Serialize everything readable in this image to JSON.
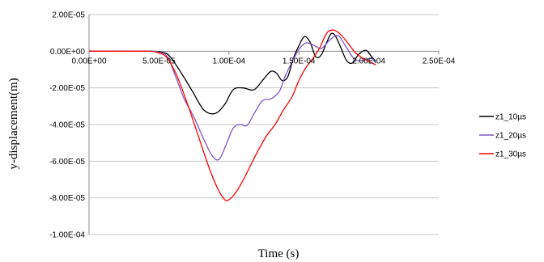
{
  "chart_data": {
    "type": "line",
    "title": "",
    "xlabel": "Time (s)",
    "ylabel": "y-displacement(m)",
    "xlim": [
      0,
      0.00025
    ],
    "ylim": [
      -0.0001,
      2e-05
    ],
    "xticks": [
      {
        "value": 0,
        "label": "0.00E+00"
      },
      {
        "value": 5e-05,
        "label": "5.00E-05"
      },
      {
        "value": 0.0001,
        "label": "1.00E-04"
      },
      {
        "value": 0.00015,
        "label": "1.50E-04"
      },
      {
        "value": 0.0002,
        "label": "2.00E-04"
      },
      {
        "value": 0.00025,
        "label": "2.50E-04"
      }
    ],
    "yticks": [
      {
        "value": 2e-05,
        "label": "2.00E-05"
      },
      {
        "value": 0,
        "label": "0.00E+00"
      },
      {
        "value": -2e-05,
        "label": "-2.00E-05"
      },
      {
        "value": -4e-05,
        "label": "-4.00E-05"
      },
      {
        "value": -6e-05,
        "label": "-6.00E-05"
      },
      {
        "value": -8e-05,
        "label": "-8.00E-05"
      },
      {
        "value": -0.0001,
        "label": "-1.00E-04"
      }
    ],
    "grid": "horizontal",
    "legend_position": "right",
    "series": [
      {
        "name": "z1_10µs",
        "color": "#000000",
        "x": [
          0,
          4e-05,
          5.2e-05,
          5.8e-05,
          6.6e-05,
          7.4e-05,
          8.2e-05,
          9e-05,
          9.7e-05,
          0.000103,
          0.00011,
          0.000118,
          0.000125,
          0.00013,
          0.000134,
          0.000138,
          0.000142,
          0.000146,
          0.00015,
          0.000154,
          0.000158,
          0.000162,
          0.000166,
          0.00017,
          0.000173,
          0.000176,
          0.00018,
          0.000184,
          0.000188,
          0.000193,
          0.000198,
          0.000202,
          0.000205
        ],
        "y": [
          0,
          0,
          -5e-07,
          -3e-06,
          -1.2e-05,
          -2.2e-05,
          -3.2e-05,
          -3.4e-05,
          -2.9e-05,
          -2.1e-05,
          -2e-05,
          -2.1e-05,
          -1.5e-05,
          -1.1e-05,
          -1.2e-05,
          -1.6e-05,
          -1.4e-05,
          -4e-06,
          3e-06,
          8e-06,
          5e-06,
          -3e-06,
          -2e-06,
          5e-06,
          9.5e-06,
          8.5e-06,
          2e-06,
          -5e-06,
          -6.5e-06,
          -1.5e-06,
          5e-07,
          -3e-06,
          -5.5e-06
        ]
      },
      {
        "name": "z1_20µs",
        "color": "#7b57c6",
        "x": [
          0,
          4e-05,
          5e-05,
          5.6e-05,
          6.2e-05,
          6.8e-05,
          7.5e-05,
          8.2e-05,
          8.8e-05,
          9.3e-05,
          9.8e-05,
          0.000103,
          0.000108,
          0.000113,
          0.000118,
          0.000124,
          0.00013,
          0.000136,
          0.00014,
          0.000145,
          0.00015,
          0.000155,
          0.00016,
          0.000166,
          0.000172,
          0.000178,
          0.000184,
          0.00019,
          0.000196,
          0.000202,
          0.000205
        ],
        "y": [
          0,
          0,
          -5e-07,
          -3e-06,
          -1.4e-05,
          -2.6e-05,
          -3.6e-05,
          -4.8e-05,
          -5.7e-05,
          -5.9e-05,
          -5.1e-05,
          -4.2e-05,
          -4e-05,
          -4.05e-05,
          -3.4e-05,
          -2.7e-05,
          -2.6e-05,
          -2.2e-05,
          -1.4e-05,
          -6e-06,
          1e-06,
          4.5e-06,
          3.5e-06,
          1.5e-06,
          6e-06,
          8.5e-06,
          2e-06,
          -4.5e-06,
          -5e-06,
          -4e-06,
          -6.5e-06
        ]
      },
      {
        "name": "z1_30µs",
        "color": "#ff0000",
        "x": [
          0,
          4e-05,
          4.8e-05,
          5.5e-05,
          6.2e-05,
          7e-05,
          7.8e-05,
          8.6e-05,
          9.2e-05,
          9.7e-05,
          0.0001,
          0.000104,
          0.000109,
          0.000115,
          0.000121,
          0.000127,
          0.000133,
          0.000139,
          0.000145,
          0.00015,
          0.000155,
          0.00016,
          0.000165,
          0.00017,
          0.000175,
          0.00018,
          0.000185,
          0.00019,
          0.000195,
          0.0002,
          0.000205
        ],
        "y": [
          0,
          0,
          -5e-07,
          -3e-06,
          -1.2e-05,
          -2.8e-05,
          -4.6e-05,
          -6.4e-05,
          -7.5e-05,
          -8.1e-05,
          -8.1e-05,
          -7.8e-05,
          -7.2e-05,
          -6.3e-05,
          -5.4e-05,
          -4.6e-05,
          -4e-05,
          -3.2e-05,
          -2.5e-05,
          -1.6e-05,
          -9e-06,
          -4e-06,
          2e-06,
          1e-05,
          1.15e-05,
          9e-06,
          4.5e-06,
          -5e-07,
          -3.5e-06,
          -5.5e-06,
          -7.5e-06
        ]
      }
    ]
  }
}
